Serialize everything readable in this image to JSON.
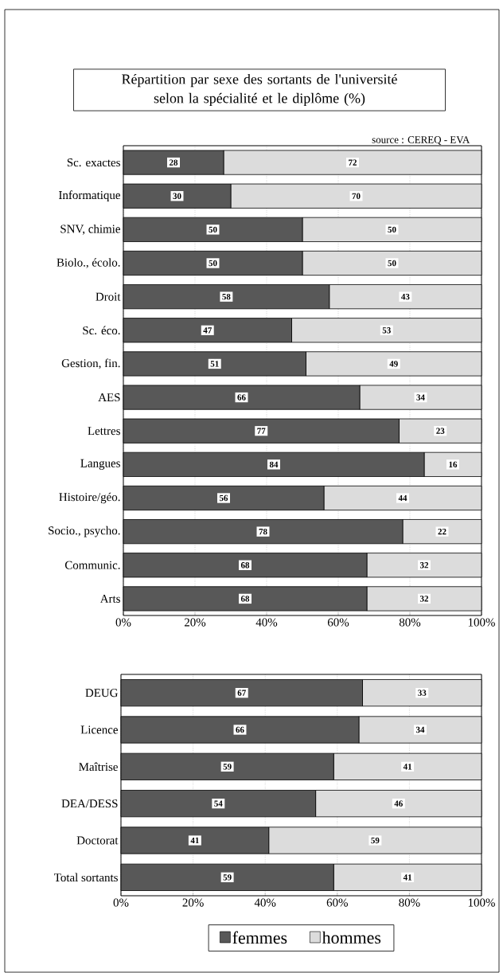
{
  "chart_data": [
    {
      "type": "bar",
      "orientation": "horizontal",
      "stacked": true,
      "title": "Répartition par sexe des sortants de l'université selon la spécialité et le diplôme (%)",
      "annotations": [
        "source : CEREQ - EVA"
      ],
      "categories": [
        "Sc. exactes",
        "Informatique",
        "SNV, chimie",
        "Biolo., écolo.",
        "Droit",
        "Sc. éco.",
        "Gestion, fin.",
        "AES",
        "Lettres",
        "Langues",
        "Histoire/géo.",
        "Socio., psycho.",
        "Communic.",
        "Arts"
      ],
      "series": [
        {
          "color": "#585858",
          "values": [
            28,
            30,
            50,
            50,
            57.5,
            47,
            51,
            66,
            77,
            84,
            56,
            78,
            68,
            68
          ],
          "value_labels": [
            "28",
            "30",
            "50",
            "50",
            "58",
            "47",
            "51",
            "66",
            "77",
            "84",
            "56",
            "78",
            "68",
            "68"
          ]
        },
        {
          "color": "#dcdcdc",
          "values": [
            72,
            70,
            50,
            50,
            42.5,
            53,
            49,
            34,
            23,
            16,
            44,
            22,
            32,
            32
          ],
          "value_labels": [
            "72",
            "70",
            "50",
            "50",
            "43",
            "53",
            "49",
            "34",
            "23",
            "16",
            "44",
            "22",
            "32",
            "32"
          ]
        }
      ],
      "xlim": [
        0,
        100
      ],
      "xticks": [
        {
          "value": 0,
          "label": "0%"
        },
        {
          "value": 20,
          "label": "20%"
        },
        {
          "value": 40,
          "label": "40%"
        },
        {
          "value": 60,
          "label": "60%"
        },
        {
          "value": 80,
          "label": "80%"
        },
        {
          "value": 100,
          "label": "100%"
        }
      ],
      "grid": "x"
    },
    {
      "type": "bar",
      "orientation": "horizontal",
      "stacked": true,
      "categories": [
        "DEUG",
        "Licence",
        "Maîtrise",
        "DEA/DESS",
        "Doctorat",
        "Total sortants"
      ],
      "series": [
        {
          "name": "femmes",
          "color": "#585858",
          "values": [
            67,
            66,
            59,
            54,
            41,
            59
          ]
        },
        {
          "name": "hommes",
          "color": "#dcdcdc",
          "values": [
            33,
            34,
            41,
            46,
            59,
            41
          ]
        }
      ],
      "xlim": [
        0,
        100
      ],
      "xticks": [
        {
          "value": 0,
          "label": "0%"
        },
        {
          "value": 20,
          "label": "20%"
        },
        {
          "value": 40,
          "label": "40%"
        },
        {
          "value": 60,
          "label": "60%"
        },
        {
          "value": 80,
          "label": "80%"
        },
        {
          "value": 100,
          "label": "100%"
        }
      ],
      "data_labels": true,
      "grid": "x",
      "legend": "bottom"
    }
  ]
}
